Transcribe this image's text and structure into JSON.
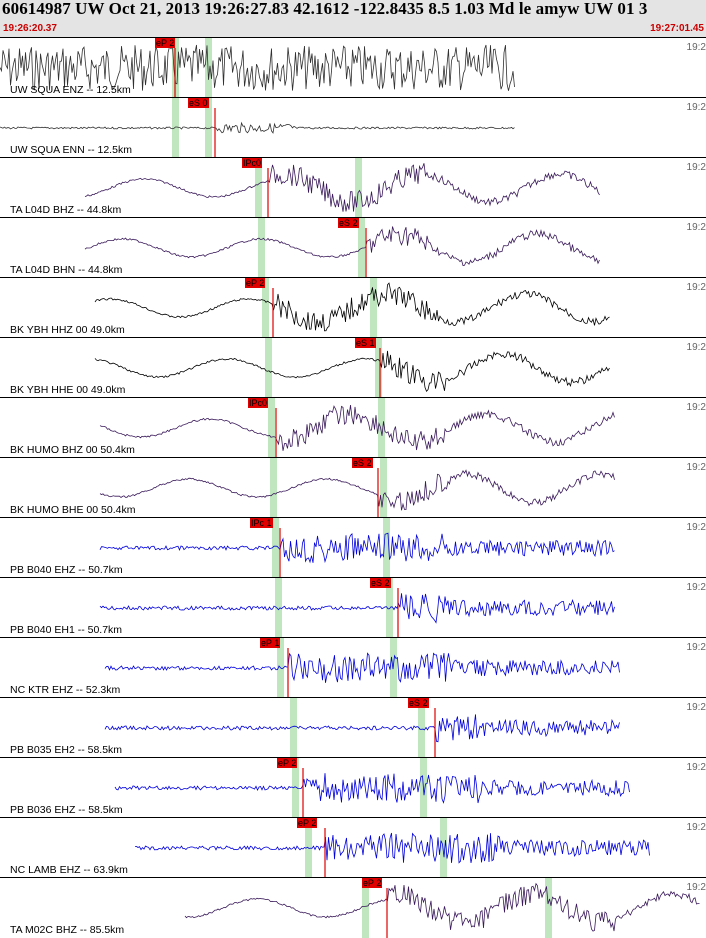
{
  "header": {
    "title": "60614987 UW Oct 21, 2013 19:26:27.83   42.1612 -122.8435  8.5 1.03 Md le amyw UW 01   3",
    "time_start": "19:26:20.37",
    "time_end": "19:27:01.45"
  },
  "colors": {
    "header_bg": "#e4e4e4",
    "pick": "#e00000",
    "time_red": "#cc0000",
    "window_green": "#bfe6bf"
  },
  "traces": [
    {
      "label": "UW SQUA ENZ -- 12.5km",
      "time_label": "19:2",
      "pick": "eP 2",
      "color": "#303030",
      "style": "noise"
    },
    {
      "label": "UW SQUA ENN -- 12.5km",
      "time_label": "19:2",
      "pick": "eS 0",
      "color": "#303030",
      "style": "flat"
    },
    {
      "label": "TA L04D BHZ -- 44.8km",
      "time_label": "19:2",
      "pick": "IPc0",
      "color": "#3a1a5a",
      "style": "long"
    },
    {
      "label": "TA L04D BHN -- 44.8km",
      "time_label": "19:2",
      "pick": "eS 2",
      "color": "#3a1a5a",
      "style": "long"
    },
    {
      "label": "BK YBH HHZ 00 49.0km",
      "time_label": "19:2",
      "pick": "eP 2",
      "color": "#000000",
      "style": "long"
    },
    {
      "label": "BK YBH HHE 00 49.0km",
      "time_label": "19:2",
      "pick": "eS 1",
      "color": "#000000",
      "style": "long"
    },
    {
      "label": "BK HUMO BHZ 00 50.4km",
      "time_label": "19:2",
      "pick": "IPc0",
      "color": "#3a1a5a",
      "style": "long"
    },
    {
      "label": "BK HUMO BHE 00 50.4km",
      "time_label": "19:2",
      "pick": "eS 2",
      "color": "#3a1a5a",
      "style": "long"
    },
    {
      "label": "PB B040 EHZ -- 50.7km",
      "time_label": "19:2",
      "pick": "IPc 1",
      "color": "#0000dd",
      "style": "burst"
    },
    {
      "label": "PB B040 EH1 -- 50.7km",
      "time_label": "19:2",
      "pick": "eS 2",
      "color": "#0000dd",
      "style": "burst"
    },
    {
      "label": "NC KTR EHZ -- 52.3km",
      "time_label": "19:2",
      "pick": "eP 1",
      "color": "#0000dd",
      "style": "burst"
    },
    {
      "label": "PB B035 EH2 -- 58.5km",
      "time_label": "19:2",
      "pick": "eS 2",
      "color": "#0000dd",
      "style": "burst"
    },
    {
      "label": "PB B036 EHZ -- 58.5km",
      "time_label": "19:2",
      "pick": "eP 2",
      "color": "#0000dd",
      "style": "burst"
    },
    {
      "label": "NC LAMB EHZ -- 63.9km",
      "time_label": "19:2",
      "pick": "eP 2",
      "color": "#0000dd",
      "style": "burst"
    },
    {
      "label": "TA M02C BHZ -- 85.5km",
      "time_label": "19:2",
      "pick": "eP 2",
      "color": "#3a1a5a",
      "style": "long"
    }
  ]
}
